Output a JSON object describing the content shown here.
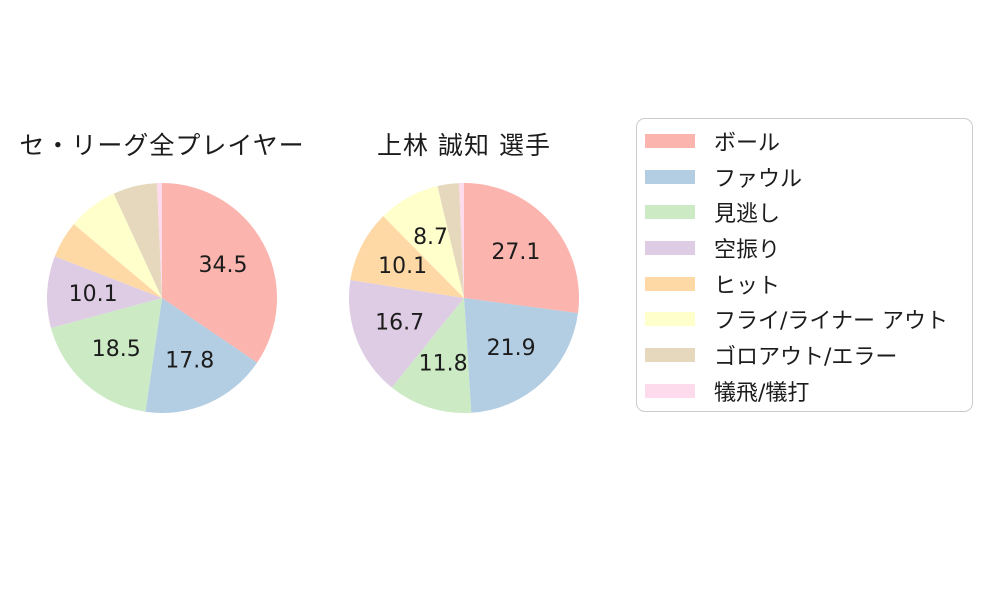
{
  "figure": {
    "background": "#ffffff",
    "text_color": "#1c1c1c"
  },
  "chart_data": [
    {
      "type": "pie",
      "title": "セ・リーグ全プレイヤー",
      "categories": [
        "ボール",
        "ファウル",
        "見逃し",
        "空振り",
        "ヒット",
        "フライ/ライナー アウト",
        "ゴロアウト/エラー",
        "犠飛/犠打"
      ],
      "values": [
        34.5,
        17.8,
        18.5,
        10.1,
        5.2,
        7.0,
        6.2,
        0.7
      ],
      "value_labels_shown": [
        "34.5",
        "17.8",
        "18.5",
        "10.1",
        "",
        "",
        "",
        ""
      ],
      "colors": [
        "#FBB4AE",
        "#B3CDE3",
        "#CCEBC5",
        "#DECBE4",
        "#FED9A6",
        "#FFFFCC",
        "#E5D8BD",
        "#FDDAEC"
      ],
      "start_angle": "12-oclock",
      "direction": "clockwise",
      "label_distance": 0.6
    },
    {
      "type": "pie",
      "title": "上林 誠知 選手",
      "categories": [
        "ボール",
        "ファウル",
        "見逃し",
        "空振り",
        "ヒット",
        "フライ/ライナー アウト",
        "ゴロアウト/エラー",
        "犠飛/犠打"
      ],
      "values": [
        27.1,
        21.9,
        11.8,
        16.7,
        10.1,
        8.7,
        3.0,
        0.7
      ],
      "value_labels_shown": [
        "27.1",
        "21.9",
        "11.8",
        "16.7",
        "10.1",
        "8.7",
        "",
        ""
      ],
      "colors": [
        "#FBB4AE",
        "#B3CDE3",
        "#CCEBC5",
        "#DECBE4",
        "#FED9A6",
        "#FFFFCC",
        "#E5D8BD",
        "#FDDAEC"
      ],
      "start_angle": "12-oclock",
      "direction": "clockwise",
      "label_distance": 0.6
    }
  ],
  "legend": {
    "position": "right",
    "items": [
      {
        "label": "ボール",
        "color": "#FBB4AE"
      },
      {
        "label": "ファウル",
        "color": "#B3CDE3"
      },
      {
        "label": "見逃し",
        "color": "#CCEBC5"
      },
      {
        "label": "空振り",
        "color": "#DECBE4"
      },
      {
        "label": "ヒット",
        "color": "#FED9A6"
      },
      {
        "label": "フライ/ライナー アウト",
        "color": "#FFFFCC"
      },
      {
        "label": "ゴロアウト/エラー",
        "color": "#E5D8BD"
      },
      {
        "label": "犠飛/犠打",
        "color": "#FDDAEC"
      }
    ]
  }
}
